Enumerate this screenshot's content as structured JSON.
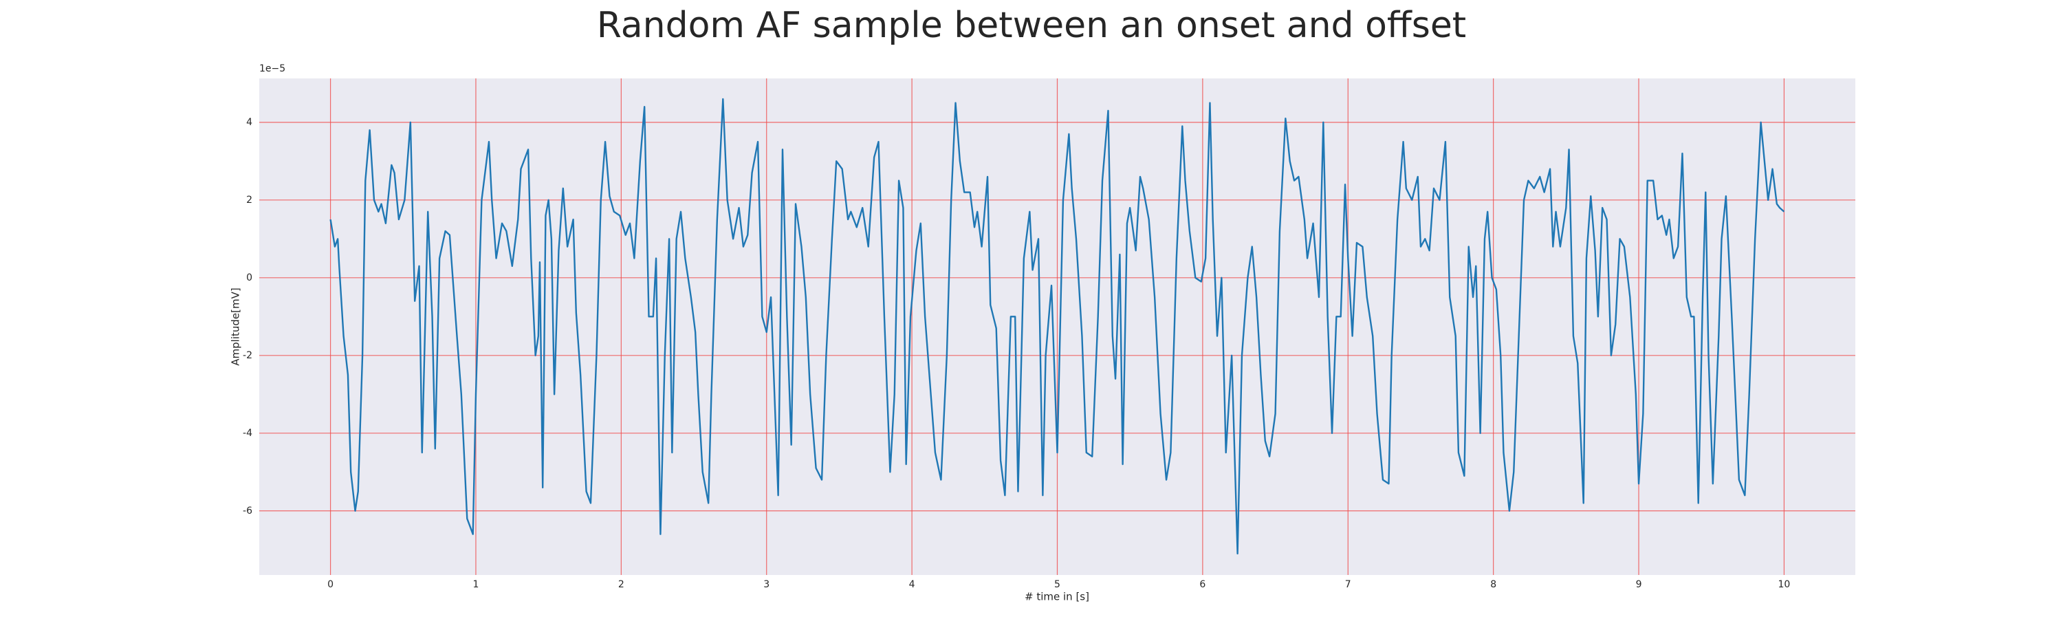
{
  "chart_data": {
    "type": "line",
    "title": "Random AF sample between an onset and offset",
    "x_label": "# time in [s]",
    "y_label": "Amplitude[mV]",
    "y_offset_label": "1e−5",
    "color": "#1f77b4",
    "grid": true,
    "grid_color": "#f04848",
    "background": "#eaeaf2",
    "xlim": [
      -0.49,
      10.49
    ],
    "ylim": [
      -7.65,
      5.13
    ],
    "xticks": [
      0,
      1,
      2,
      3,
      4,
      5,
      6,
      7,
      8,
      9,
      10
    ],
    "yticks": [
      -6,
      -4,
      -2,
      0,
      2,
      4
    ],
    "x": [
      0,
      0.03,
      0.05,
      0.06,
      0.09,
      0.12,
      0.14,
      0.17,
      0.19,
      0.22,
      0.24,
      0.27,
      0.3,
      0.33,
      0.35,
      0.38,
      0.42,
      0.44,
      0.47,
      0.51,
      0.55,
      0.58,
      0.61,
      0.63,
      0.67,
      0.7,
      0.72,
      0.75,
      0.79,
      0.82,
      0.87,
      0.9,
      0.94,
      0.98,
      1.0,
      1.04,
      1.09,
      1.11,
      1.14,
      1.18,
      1.21,
      1.25,
      1.29,
      1.31,
      1.36,
      1.38,
      1.41,
      1.43,
      1.44,
      1.46,
      1.48,
      1.5,
      1.52,
      1.54,
      1.57,
      1.6,
      1.63,
      1.67,
      1.69,
      1.72,
      1.76,
      1.79,
      1.83,
      1.86,
      1.89,
      1.92,
      1.95,
      1.99,
      2.03,
      2.06,
      2.09,
      2.13,
      2.16,
      2.19,
      2.22,
      2.24,
      2.27,
      2.3,
      2.33,
      2.35,
      2.38,
      2.41,
      2.44,
      2.48,
      2.51,
      2.53,
      2.56,
      2.6,
      2.62,
      2.66,
      2.7,
      2.73,
      2.77,
      2.81,
      2.84,
      2.87,
      2.9,
      2.94,
      2.97,
      3.0,
      3.03,
      3.08,
      3.11,
      3.14,
      3.17,
      3.2,
      3.24,
      3.27,
      3.3,
      3.34,
      3.38,
      3.41,
      3.45,
      3.48,
      3.52,
      3.56,
      3.58,
      3.62,
      3.66,
      3.7,
      3.74,
      3.77,
      3.81,
      3.85,
      3.88,
      3.91,
      3.94,
      3.96,
      3.99,
      4.03,
      4.06,
      4.09,
      4.13,
      4.16,
      4.2,
      4.24,
      4.27,
      4.3,
      4.33,
      4.36,
      4.4,
      4.43,
      4.45,
      4.48,
      4.52,
      4.54,
      4.58,
      4.61,
      4.64,
      4.68,
      4.71,
      4.73,
      4.77,
      4.81,
      4.83,
      4.87,
      4.9,
      4.92,
      4.96,
      5.0,
      5.04,
      5.08,
      5.1,
      5.13,
      5.17,
      5.2,
      5.24,
      5.28,
      5.31,
      5.35,
      5.38,
      5.4,
      5.43,
      5.45,
      5.48,
      5.5,
      5.54,
      5.57,
      5.59,
      5.63,
      5.67,
      5.71,
      5.75,
      5.78,
      5.82,
      5.86,
      5.88,
      5.91,
      5.95,
      5.99,
      6.02,
      6.05,
      6.07,
      6.1,
      6.13,
      6.16,
      6.2,
      6.24,
      6.27,
      6.31,
      6.34,
      6.37,
      6.4,
      6.43,
      6.46,
      6.5,
      6.53,
      6.57,
      6.6,
      6.63,
      6.66,
      6.7,
      6.72,
      6.76,
      6.8,
      6.83,
      6.86,
      6.89,
      6.92,
      6.95,
      6.98,
      7.0,
      7.03,
      7.06,
      7.1,
      7.13,
      7.17,
      7.2,
      7.24,
      7.28,
      7.3,
      7.34,
      7.38,
      7.4,
      7.44,
      7.48,
      7.5,
      7.53,
      7.56,
      7.59,
      7.63,
      7.67,
      7.7,
      7.74,
      7.76,
      7.8,
      7.83,
      7.86,
      7.88,
      7.91,
      7.94,
      7.96,
      7.99,
      8.02,
      8.05,
      8.07,
      8.11,
      8.14,
      8.17,
      8.21,
      8.24,
      8.28,
      8.32,
      8.35,
      8.39,
      8.41,
      8.43,
      8.46,
      8.5,
      8.52,
      8.55,
      8.58,
      8.62,
      8.64,
      8.67,
      8.7,
      8.72,
      8.75,
      8.78,
      8.81,
      8.84,
      8.87,
      8.9,
      8.94,
      8.98,
      9.0,
      9.03,
      9.06,
      9.1,
      9.13,
      9.16,
      9.19,
      9.21,
      9.24,
      9.27,
      9.3,
      9.33,
      9.36,
      9.38,
      9.41,
      9.44,
      9.46,
      9.48,
      9.51,
      9.55,
      9.57,
      9.6,
      9.64,
      9.67,
      9.69,
      9.73,
      9.76,
      9.8,
      9.84,
      9.86,
      9.89,
      9.92,
      9.95,
      9.97,
      10.0
    ],
    "values": [
      1.5,
      0.8,
      1.0,
      0.3,
      -1.5,
      -2.5,
      -5,
      -6,
      -5.5,
      -2,
      2.5,
      3.8,
      2,
      1.7,
      1.9,
      1.4,
      2.9,
      2.7,
      1.5,
      2.0,
      4.0,
      -0.6,
      0.3,
      -4.5,
      1.7,
      -1,
      -4.4,
      0.5,
      1.2,
      1.1,
      -1.5,
      -3,
      -6.2,
      -6.6,
      -3,
      2,
      3.5,
      2,
      0.5,
      1.4,
      1.2,
      0.3,
      1.5,
      2.8,
      3.3,
      0.5,
      -2,
      -1.5,
      0.4,
      -5.4,
      1.6,
      2.0,
      1.0,
      -3,
      0.7,
      2.3,
      0.8,
      1.5,
      -0.9,
      -2.5,
      -5.5,
      -5.8,
      -2,
      2,
      3.5,
      2.1,
      1.7,
      1.6,
      1.1,
      1.4,
      0.5,
      3.0,
      4.4,
      -1,
      -1,
      0.5,
      -6.6,
      -2,
      1.0,
      -4.5,
      1.0,
      1.7,
      0.5,
      -0.5,
      -1.4,
      -3,
      -5,
      -5.8,
      -3,
      1.5,
      4.6,
      2.0,
      1.0,
      1.8,
      0.8,
      1.1,
      2.7,
      3.5,
      -1,
      -1.4,
      -0.5,
      -5.6,
      3.3,
      -1,
      -4.3,
      1.9,
      0.8,
      -0.5,
      -3,
      -4.9,
      -5.2,
      -2,
      1,
      3.0,
      2.8,
      1.5,
      1.7,
      1.3,
      1.8,
      0.8,
      3.1,
      3.5,
      -1,
      -5.0,
      -3,
      2.5,
      1.8,
      -4.8,
      -1,
      0.7,
      1.4,
      -1,
      -3,
      -4.5,
      -5.2,
      -2,
      2,
      4.5,
      3,
      2.2,
      2.2,
      1.3,
      1.7,
      0.8,
      2.6,
      -0.7,
      -1.3,
      -4.7,
      -5.6,
      -1,
      -1.0,
      -5.5,
      0.5,
      1.7,
      0.2,
      1.0,
      -5.6,
      -2,
      -0.2,
      -4.5,
      2,
      3.7,
      2.3,
      1.0,
      -1.5,
      -4.5,
      -4.6,
      -1,
      2.5,
      4.3,
      -1.5,
      -2.6,
      0.6,
      -4.8,
      1.4,
      1.8,
      0.7,
      2.6,
      2.3,
      1.5,
      -0.5,
      -3.5,
      -5.2,
      -4.5,
      0.5,
      3.9,
      2.5,
      1.2,
      0.0,
      -0.1,
      0.5,
      4.5,
      1.5,
      -1.5,
      0,
      -4.5,
      -2,
      -7.1,
      -2,
      0,
      0.8,
      -0.5,
      -2.5,
      -4.2,
      -4.6,
      -3.5,
      1.2,
      4.1,
      3.0,
      2.5,
      2.6,
      1.5,
      0.5,
      1.4,
      -0.5,
      4.0,
      -1,
      -4.0,
      -1,
      -1.0,
      2.4,
      0.5,
      -1.5,
      0.9,
      0.8,
      -0.5,
      -1.5,
      -3.5,
      -5.2,
      -5.3,
      -2,
      1.5,
      3.5,
      2.3,
      2.0,
      2.6,
      0.8,
      1.0,
      0.7,
      2.3,
      2.0,
      3.5,
      -0.5,
      -1.5,
      -4.5,
      -5.1,
      0.8,
      -0.5,
      0.3,
      -4.0,
      1.0,
      1.7,
      0,
      -0.3,
      -2,
      -4.5,
      -6.0,
      -5,
      -2,
      2.0,
      2.5,
      2.3,
      2.6,
      2.2,
      2.8,
      0.8,
      1.7,
      0.8,
      1.8,
      3.3,
      -1.5,
      -2.2,
      -5.8,
      0.5,
      2.1,
      0.7,
      -1,
      1.8,
      1.5,
      -2,
      -1.2,
      1.0,
      0.8,
      -0.5,
      -3,
      -5.3,
      -3.5,
      2.5,
      2.5,
      1.5,
      1.6,
      1.1,
      1.5,
      0.5,
      0.8,
      3.2,
      -0.5,
      -1,
      -1,
      -5.8,
      -0.5,
      2.2,
      -2,
      -5.3,
      -1.5,
      1.0,
      2.1,
      -1,
      -3.5,
      -5.2,
      -5.6,
      -3,
      1,
      4.0,
      3.2,
      2.0,
      2.8,
      1.9,
      1.8,
      1.7
    ]
  }
}
